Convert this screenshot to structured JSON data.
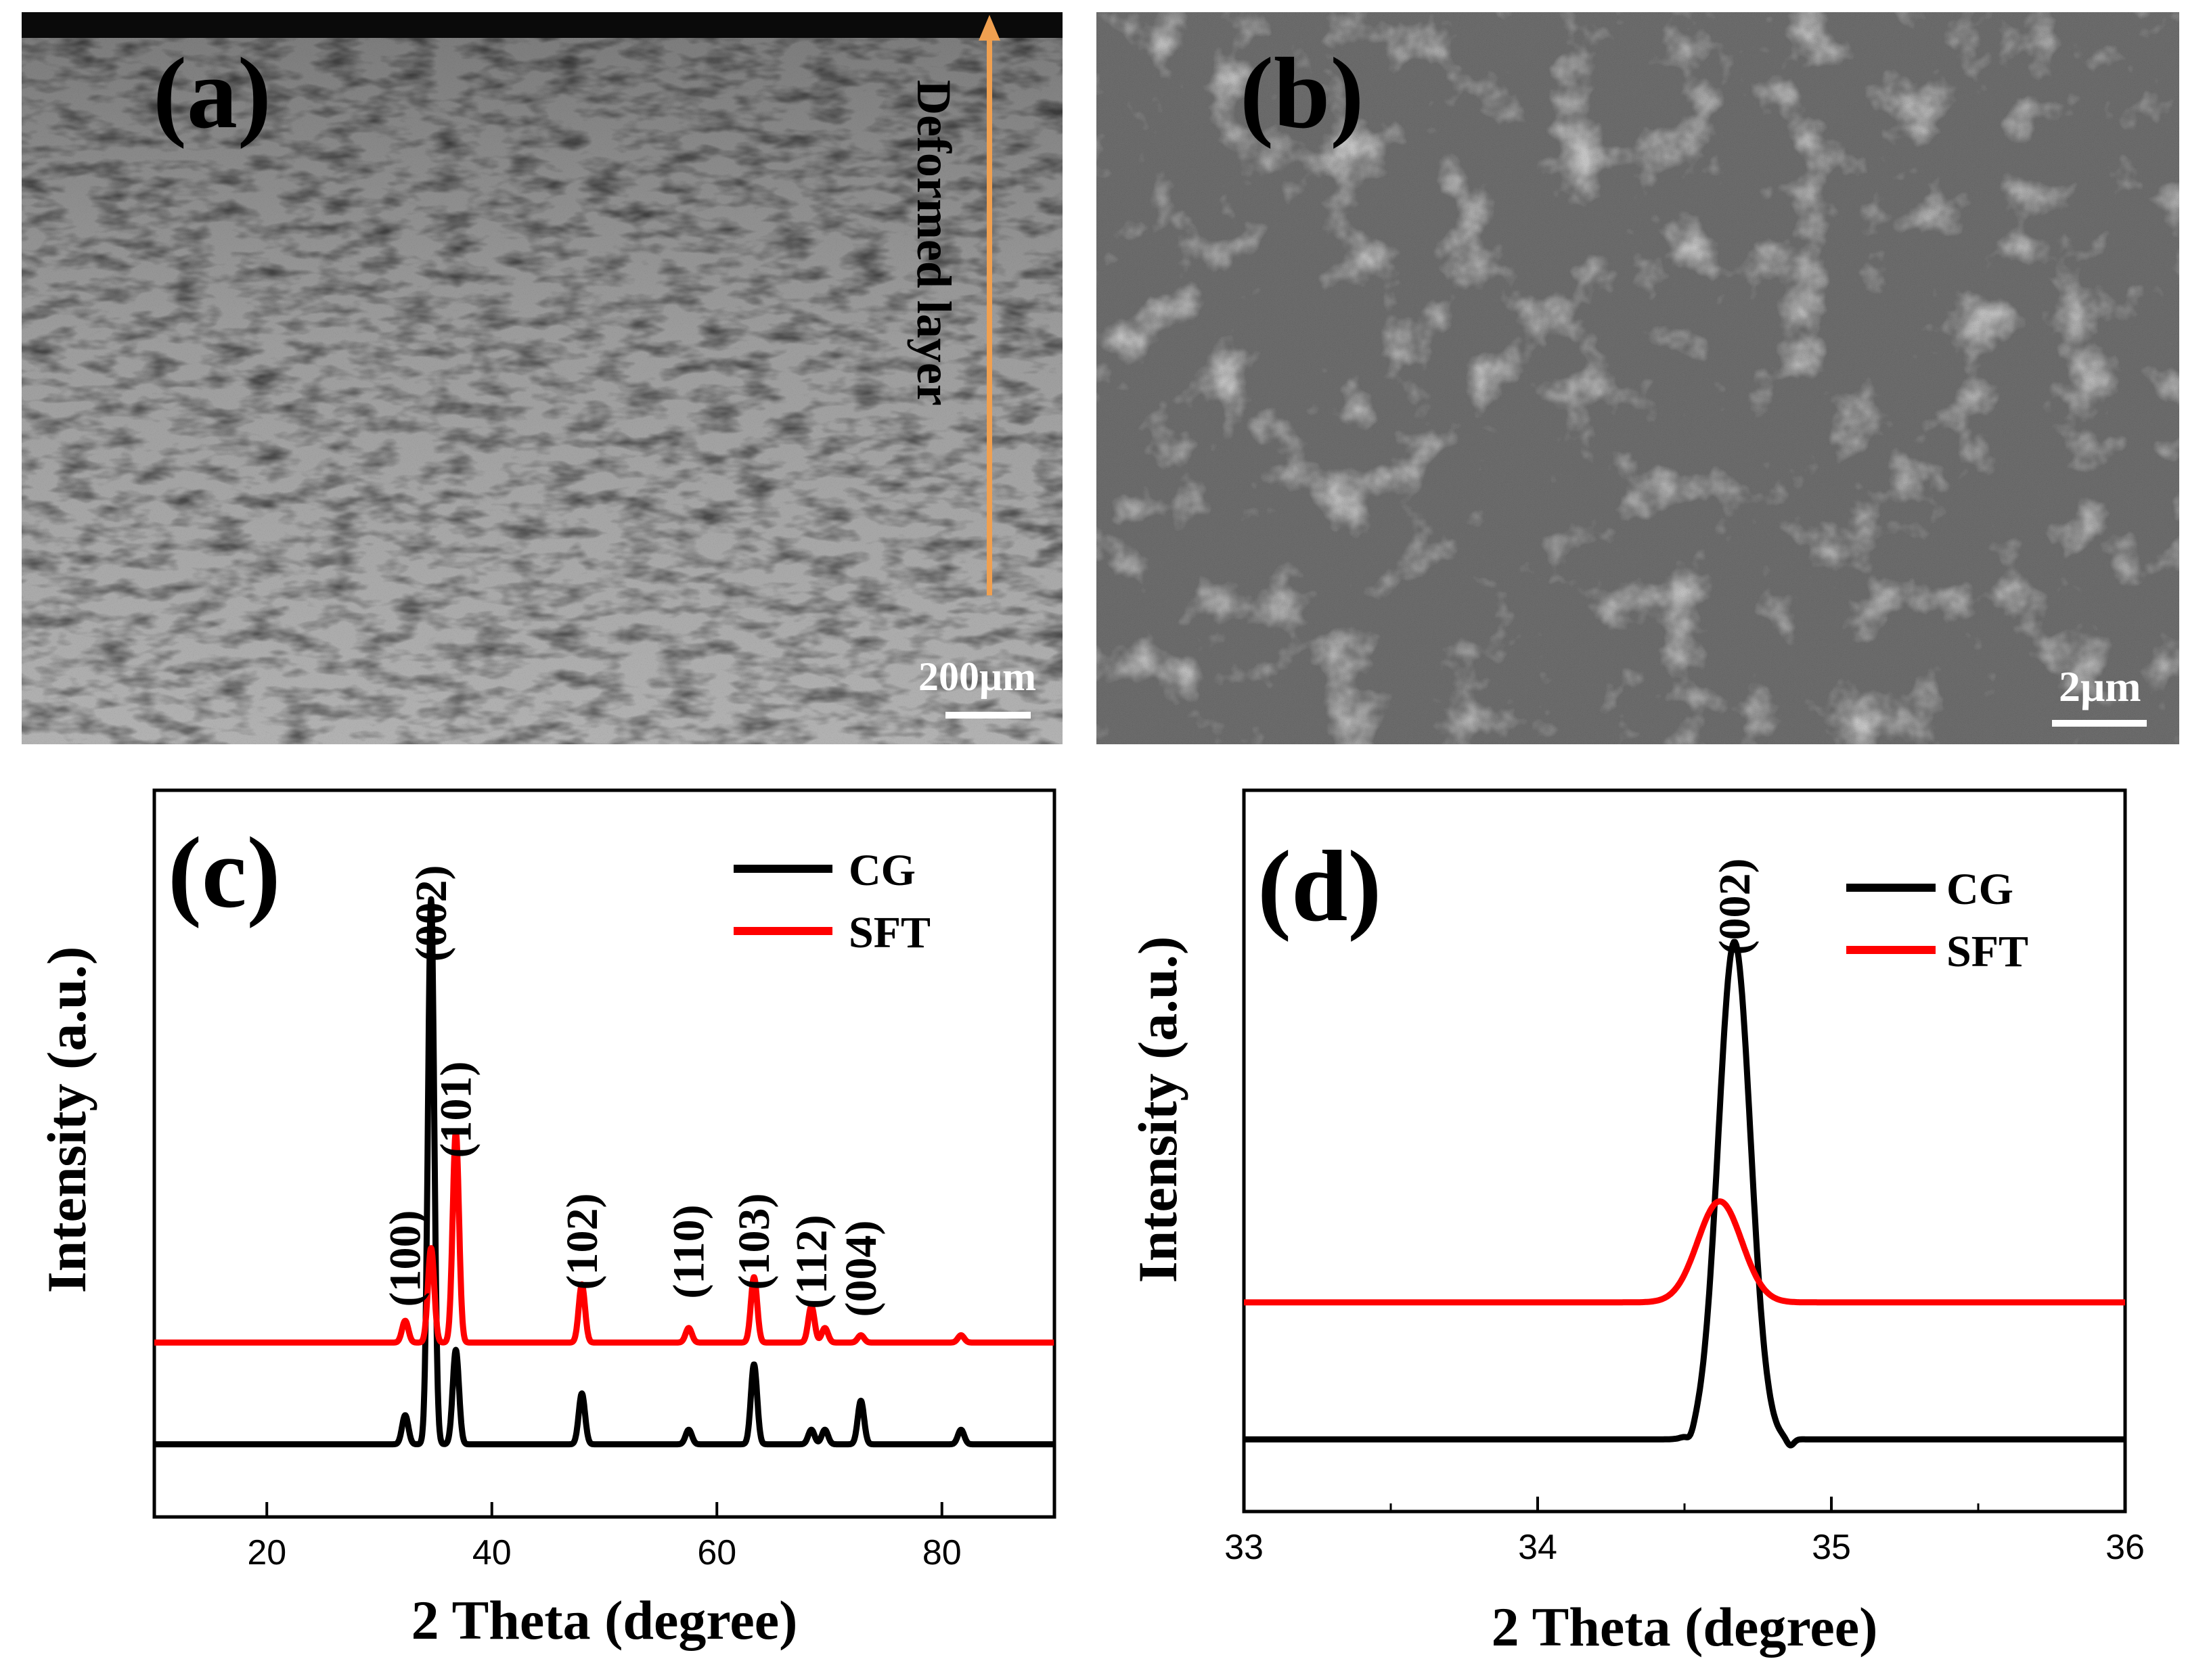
{
  "panels": {
    "a": {
      "label": "(a)",
      "annotation": "Deformed layer",
      "scale_bar": "200μm"
    },
    "b": {
      "label": "(b)",
      "scale_bar": "2μm"
    },
    "c": {
      "label": "(c)"
    },
    "d": {
      "label": "(d)"
    }
  },
  "colors": {
    "cg": "#000000",
    "sft": "#ff0000",
    "arrow": "#f0a050"
  },
  "chart_data": [
    {
      "panel": "c",
      "type": "line",
      "xlabel": "2 Theta (degree)",
      "ylabel": "Intensity (a.u.)",
      "xlim": [
        10,
        90
      ],
      "xticks": [
        20,
        40,
        60,
        80
      ],
      "ylim": [
        0,
        100
      ],
      "legend": "top-right",
      "series": [
        {
          "name": "CG",
          "baseline": 10,
          "peaks": [
            [
              32.3,
              4
            ],
            [
              34.6,
              75
            ],
            [
              36.8,
              13
            ],
            [
              48.0,
              7
            ],
            [
              57.5,
              2
            ],
            [
              63.3,
              11
            ],
            [
              68.4,
              2
            ],
            [
              69.6,
              2
            ],
            [
              72.8,
              6
            ],
            [
              81.7,
              2
            ]
          ]
        },
        {
          "name": "SFT",
          "baseline": 24,
          "peaks": [
            [
              32.3,
              3
            ],
            [
              34.6,
              13
            ],
            [
              36.8,
              29
            ],
            [
              48.0,
              8
            ],
            [
              57.5,
              2
            ],
            [
              63.3,
              9
            ],
            [
              68.4,
              5
            ],
            [
              69.6,
              2
            ],
            [
              72.8,
              1
            ],
            [
              81.7,
              1
            ]
          ]
        }
      ],
      "peak_labels": [
        {
          "text": "(100)",
          "x": 32.3
        },
        {
          "text": "(002)",
          "x": 34.6
        },
        {
          "text": "(101)",
          "x": 36.8
        },
        {
          "text": "(102)",
          "x": 48.0
        },
        {
          "text": "(110)",
          "x": 57.5
        },
        {
          "text": "(103)",
          "x": 63.3
        },
        {
          "text": "(112)",
          "x": 68.4
        },
        {
          "text": "(004)",
          "x": 72.8
        }
      ]
    },
    {
      "panel": "d",
      "type": "line",
      "xlabel": "2 Theta (degree)",
      "ylabel": "Intensity (a.u.)",
      "xlim": [
        33,
        36
      ],
      "xticks": [
        33,
        34,
        35,
        36
      ],
      "ylim": [
        0,
        100
      ],
      "legend": "top-right",
      "series": [
        {
          "name": "CG",
          "baseline": 10,
          "peak_center": 34.67,
          "peak_height": 69
        },
        {
          "name": "SFT",
          "baseline": 29,
          "peak_center": 34.62,
          "peak_height": 14
        }
      ],
      "peak_labels": [
        {
          "text": "(002)",
          "x": 34.67
        }
      ]
    }
  ]
}
